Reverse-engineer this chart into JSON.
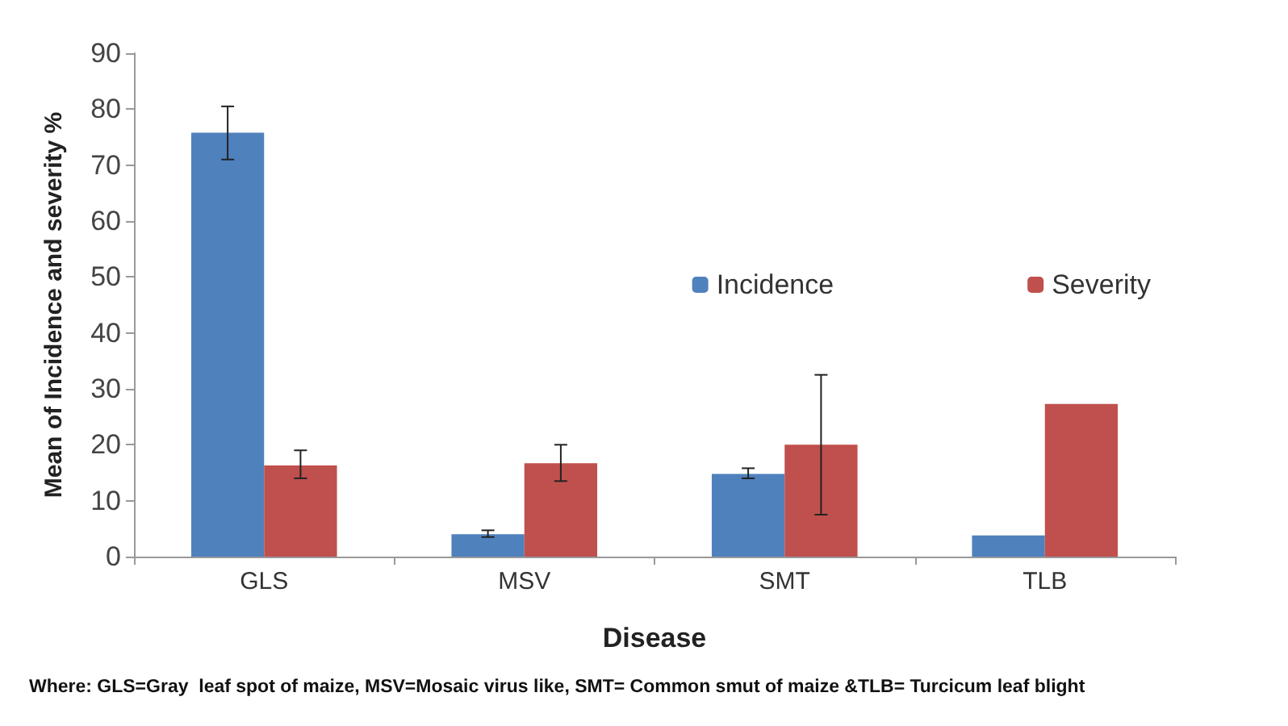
{
  "chart_data": {
    "type": "bar",
    "xlabel": "Disease",
    "ylabel": "Mean of Incidence and severity %",
    "categories": [
      "GLS",
      "MSV",
      "SMT",
      "TLB"
    ],
    "series": [
      {
        "name": "Incidence",
        "color": "#4f81bd",
        "values": [
          75.8,
          4,
          14.8,
          3.8
        ],
        "errors": [
          [
            71,
            80.5
          ],
          [
            3.5,
            4.7
          ],
          [
            14,
            15.8
          ],
          null
        ]
      },
      {
        "name": "Severity",
        "color": "#c0504d",
        "values": [
          16.3,
          16.7,
          20,
          27.3
        ],
        "errors": [
          [
            14,
            19
          ],
          [
            13.5,
            20
          ],
          [
            7.5,
            32.5
          ],
          null
        ]
      }
    ],
    "ylim": [
      0,
      90
    ],
    "yticks": [
      0,
      10,
      20,
      30,
      40,
      50,
      60,
      70,
      80,
      90
    ],
    "grid": false,
    "legend": "right",
    "annotations": [
      "Where: GLS=Gray  leaf spot of maize, MSV=Mosaic virus like, SMT= Common smut of maize &TLB= Turcicum leaf blight"
    ]
  }
}
